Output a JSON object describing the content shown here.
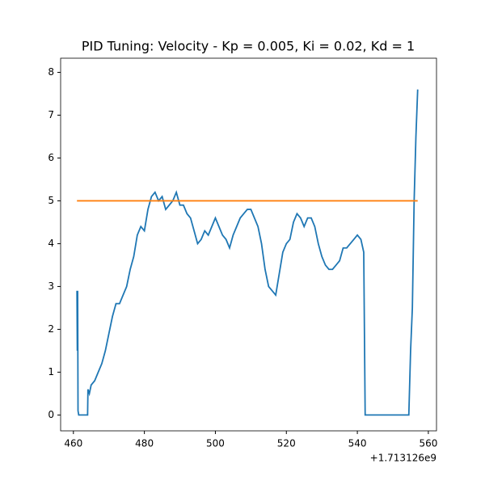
{
  "chart_data": {
    "type": "line",
    "title": "PID Tuning: Velocity - Kp = 0.005, Ki = 0.02, Kd = 1",
    "x_offset_label": "+1.713126e9",
    "xlim": [
      456.4,
      562.3
    ],
    "ylim": [
      -0.37,
      8.33
    ],
    "xticks": [
      460,
      480,
      500,
      520,
      540,
      560
    ],
    "yticks": [
      0,
      1,
      2,
      3,
      4,
      5,
      6,
      7,
      8
    ],
    "series": [
      {
        "color": "#1f77b4",
        "x": [
          461.0,
          461.1,
          461.2,
          461.3,
          461.5,
          464,
          464.1,
          464.5,
          465,
          466,
          467,
          468,
          469,
          470,
          471,
          472,
          473,
          474,
          475,
          476,
          477,
          478,
          479,
          480,
          481,
          482,
          483,
          484,
          485,
          486,
          487,
          488,
          489,
          490,
          491,
          492,
          493,
          494,
          495,
          496,
          497,
          498,
          499,
          500,
          501,
          502,
          503,
          504,
          505,
          506,
          507,
          508,
          509,
          510,
          511,
          512,
          513,
          514,
          515,
          516,
          517,
          518,
          519,
          520,
          521,
          522,
          523,
          524,
          525,
          526,
          527,
          528,
          529,
          530,
          531,
          532,
          533,
          534,
          535,
          536,
          537,
          538,
          539,
          540,
          541,
          541.8,
          542.2,
          554.5,
          555,
          555.5,
          556,
          556.5,
          557
        ],
        "values": [
          2.9,
          1.5,
          2.9,
          0.1,
          0,
          0,
          0.6,
          0.5,
          0.7,
          0.8,
          1.0,
          1.2,
          1.5,
          1.9,
          2.3,
          2.6,
          2.6,
          2.8,
          3.0,
          3.4,
          3.7,
          4.2,
          4.4,
          4.3,
          4.8,
          5.1,
          5.2,
          5.0,
          5.1,
          4.8,
          4.9,
          5.0,
          5.2,
          4.9,
          4.9,
          4.7,
          4.6,
          4.3,
          4.0,
          4.1,
          4.3,
          4.2,
          4.4,
          4.6,
          4.4,
          4.2,
          4.1,
          3.9,
          4.2,
          4.4,
          4.6,
          4.7,
          4.8,
          4.8,
          4.6,
          4.4,
          4.0,
          3.4,
          3.0,
          2.9,
          2.8,
          3.3,
          3.8,
          4.0,
          4.1,
          4.5,
          4.7,
          4.6,
          4.4,
          4.6,
          4.6,
          4.4,
          4.0,
          3.7,
          3.5,
          3.4,
          3.4,
          3.5,
          3.6,
          3.9,
          3.9,
          4.0,
          4.1,
          4.2,
          4.1,
          3.8,
          0,
          0,
          1.5,
          2.5,
          5.0,
          6.5,
          7.6
        ]
      },
      {
        "color": "#ff7f0e",
        "x": [
          461.0,
          557
        ],
        "values": [
          5,
          5
        ]
      }
    ]
  }
}
